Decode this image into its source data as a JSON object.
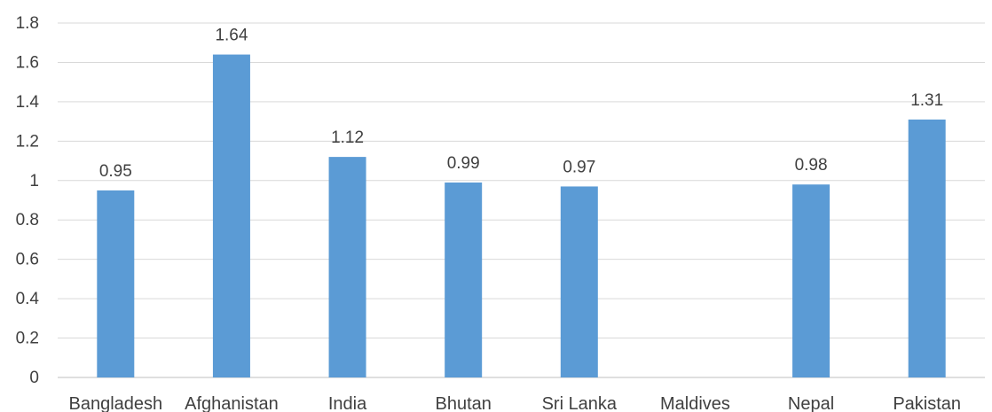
{
  "chart_data": {
    "type": "bar",
    "categories": [
      "Bangladesh",
      "Afghanistan",
      "India",
      "Bhutan",
      "Sri Lanka",
      "Maldives",
      "Nepal",
      "Pakistan"
    ],
    "values": [
      0.95,
      1.64,
      1.12,
      0.99,
      0.97,
      null,
      0.98,
      1.31
    ],
    "data_labels": [
      "0.95",
      "1.64",
      "1.12",
      "0.99",
      "0.97",
      "",
      "0.98",
      "1.31"
    ],
    "y_ticks": [
      "0",
      "0.2",
      "0.4",
      "0.6",
      "0.8",
      "1",
      "1.2",
      "1.4",
      "1.6",
      "1.8"
    ],
    "ylim": [
      0,
      1.8
    ],
    "grid": true,
    "legend": "none",
    "bar_color": "#5b9bd5"
  }
}
